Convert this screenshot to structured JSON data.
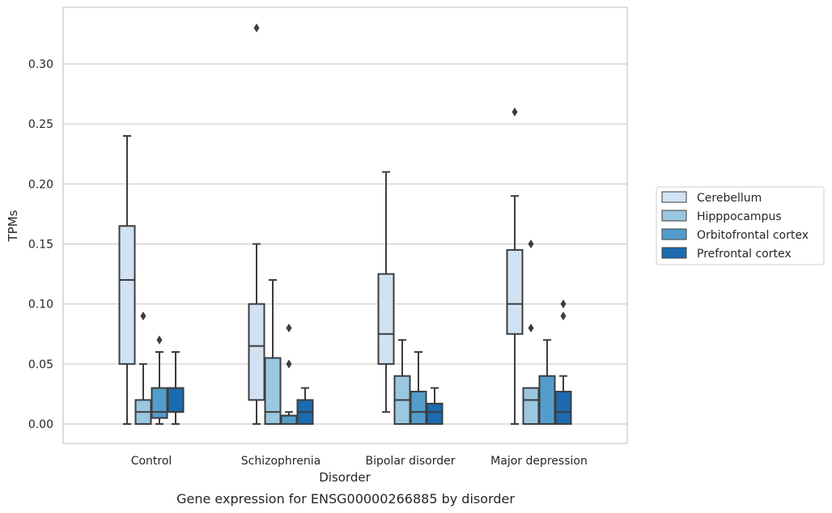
{
  "chart_data": {
    "type": "box",
    "xlabel": "Disorder",
    "ylabel": "TPMs",
    "caption": "Gene expression for ENSG00000266885 by disorder",
    "categories": [
      "Control",
      "Schizophrenia",
      "Bipolar disorder",
      "Major depression"
    ],
    "ylim": [
      -0.016,
      0.347
    ],
    "yticks": [
      0.0,
      0.05,
      0.1,
      0.15,
      0.2,
      0.25,
      0.3
    ],
    "ytick_labels": [
      "0.00",
      "0.05",
      "0.10",
      "0.15",
      "0.20",
      "0.25",
      "0.30"
    ],
    "grid": true,
    "legend_position": "right, outside plot",
    "series": [
      {
        "name": "Cerebellum",
        "color": "#d1e2f2",
        "boxes": [
          {
            "q1": 0.05,
            "median": 0.12,
            "q3": 0.165,
            "whislo": 0.0,
            "whishi": 0.24,
            "fliers": []
          },
          {
            "q1": 0.02,
            "median": 0.065,
            "q3": 0.1,
            "whislo": 0.0,
            "whishi": 0.15,
            "fliers": [
              0.33
            ]
          },
          {
            "q1": 0.05,
            "median": 0.075,
            "q3": 0.125,
            "whislo": 0.01,
            "whishi": 0.21,
            "fliers": []
          },
          {
            "q1": 0.075,
            "median": 0.1,
            "q3": 0.145,
            "whislo": 0.0,
            "whishi": 0.19,
            "fliers": [
              0.26
            ]
          }
        ]
      },
      {
        "name": "Hipppocampus",
        "color": "#9ac8e0",
        "boxes": [
          {
            "q1": 0.0,
            "median": 0.01,
            "q3": 0.02,
            "whislo": 0.0,
            "whishi": 0.05,
            "fliers": [
              0.09
            ]
          },
          {
            "q1": 0.0,
            "median": 0.01,
            "q3": 0.055,
            "whislo": 0.0,
            "whishi": 0.12,
            "fliers": []
          },
          {
            "q1": 0.0,
            "median": 0.02,
            "q3": 0.04,
            "whislo": 0.0,
            "whishi": 0.07,
            "fliers": []
          },
          {
            "q1": 0.0,
            "median": 0.02,
            "q3": 0.03,
            "whislo": 0.0,
            "whishi": 0.03,
            "fliers": [
              0.08,
              0.15
            ]
          }
        ]
      },
      {
        "name": "Orbitofrontal cortex",
        "color": "#529dcc",
        "boxes": [
          {
            "q1": 0.005,
            "median": 0.01,
            "q3": 0.03,
            "whislo": 0.0,
            "whishi": 0.06,
            "fliers": [
              0.07
            ]
          },
          {
            "q1": 0.0,
            "median": 0.007,
            "q3": 0.007,
            "whislo": 0.0,
            "whishi": 0.01,
            "fliers": [
              0.05,
              0.08
            ]
          },
          {
            "q1": 0.0,
            "median": 0.01,
            "q3": 0.027,
            "whislo": 0.0,
            "whishi": 0.06,
            "fliers": []
          },
          {
            "q1": 0.0,
            "median": 0.0,
            "q3": 0.04,
            "whislo": 0.0,
            "whishi": 0.07,
            "fliers": []
          }
        ]
      },
      {
        "name": "Prefrontal cortex",
        "color": "#1c6aaf",
        "boxes": [
          {
            "q1": 0.01,
            "median": 0.01,
            "q3": 0.03,
            "whislo": 0.0,
            "whishi": 0.06,
            "fliers": []
          },
          {
            "q1": 0.0,
            "median": 0.01,
            "q3": 0.02,
            "whislo": 0.0,
            "whishi": 0.03,
            "fliers": []
          },
          {
            "q1": 0.0,
            "median": 0.01,
            "q3": 0.017,
            "whislo": 0.0,
            "whishi": 0.03,
            "fliers": []
          },
          {
            "q1": 0.0,
            "median": 0.01,
            "q3": 0.027,
            "whislo": 0.0,
            "whishi": 0.04,
            "fliers": [
              0.09,
              0.1
            ]
          }
        ]
      }
    ]
  }
}
